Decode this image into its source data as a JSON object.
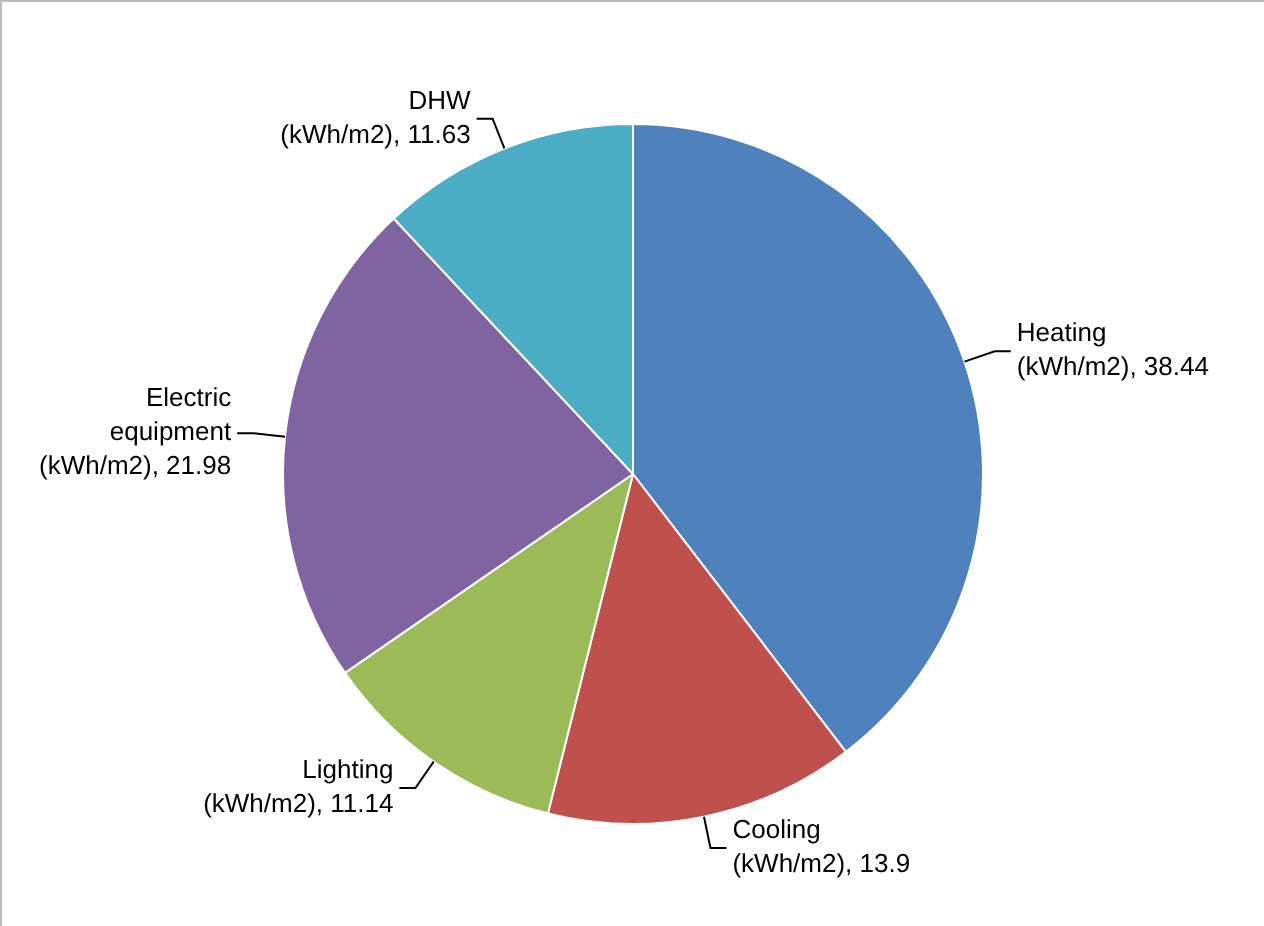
{
  "chart_data": {
    "type": "pie",
    "categories": [
      "Heating",
      "Cooling",
      "Lighting",
      "Electric equipment",
      "DHW"
    ],
    "values": [
      38.44,
      13.9,
      11.14,
      21.98,
      11.63
    ],
    "value_labels": [
      "(kWh/m2), 38.44",
      "(kWh/m2), 13.9",
      "(kWh/m2), 11.14",
      "(kWh/m2), 21.98",
      "(kWh/m2), 11.63"
    ],
    "colors": [
      "#4f81bd",
      "#c0504d",
      "#9bbb59",
      "#8064a2",
      "#4bacc6"
    ],
    "legend": false
  }
}
